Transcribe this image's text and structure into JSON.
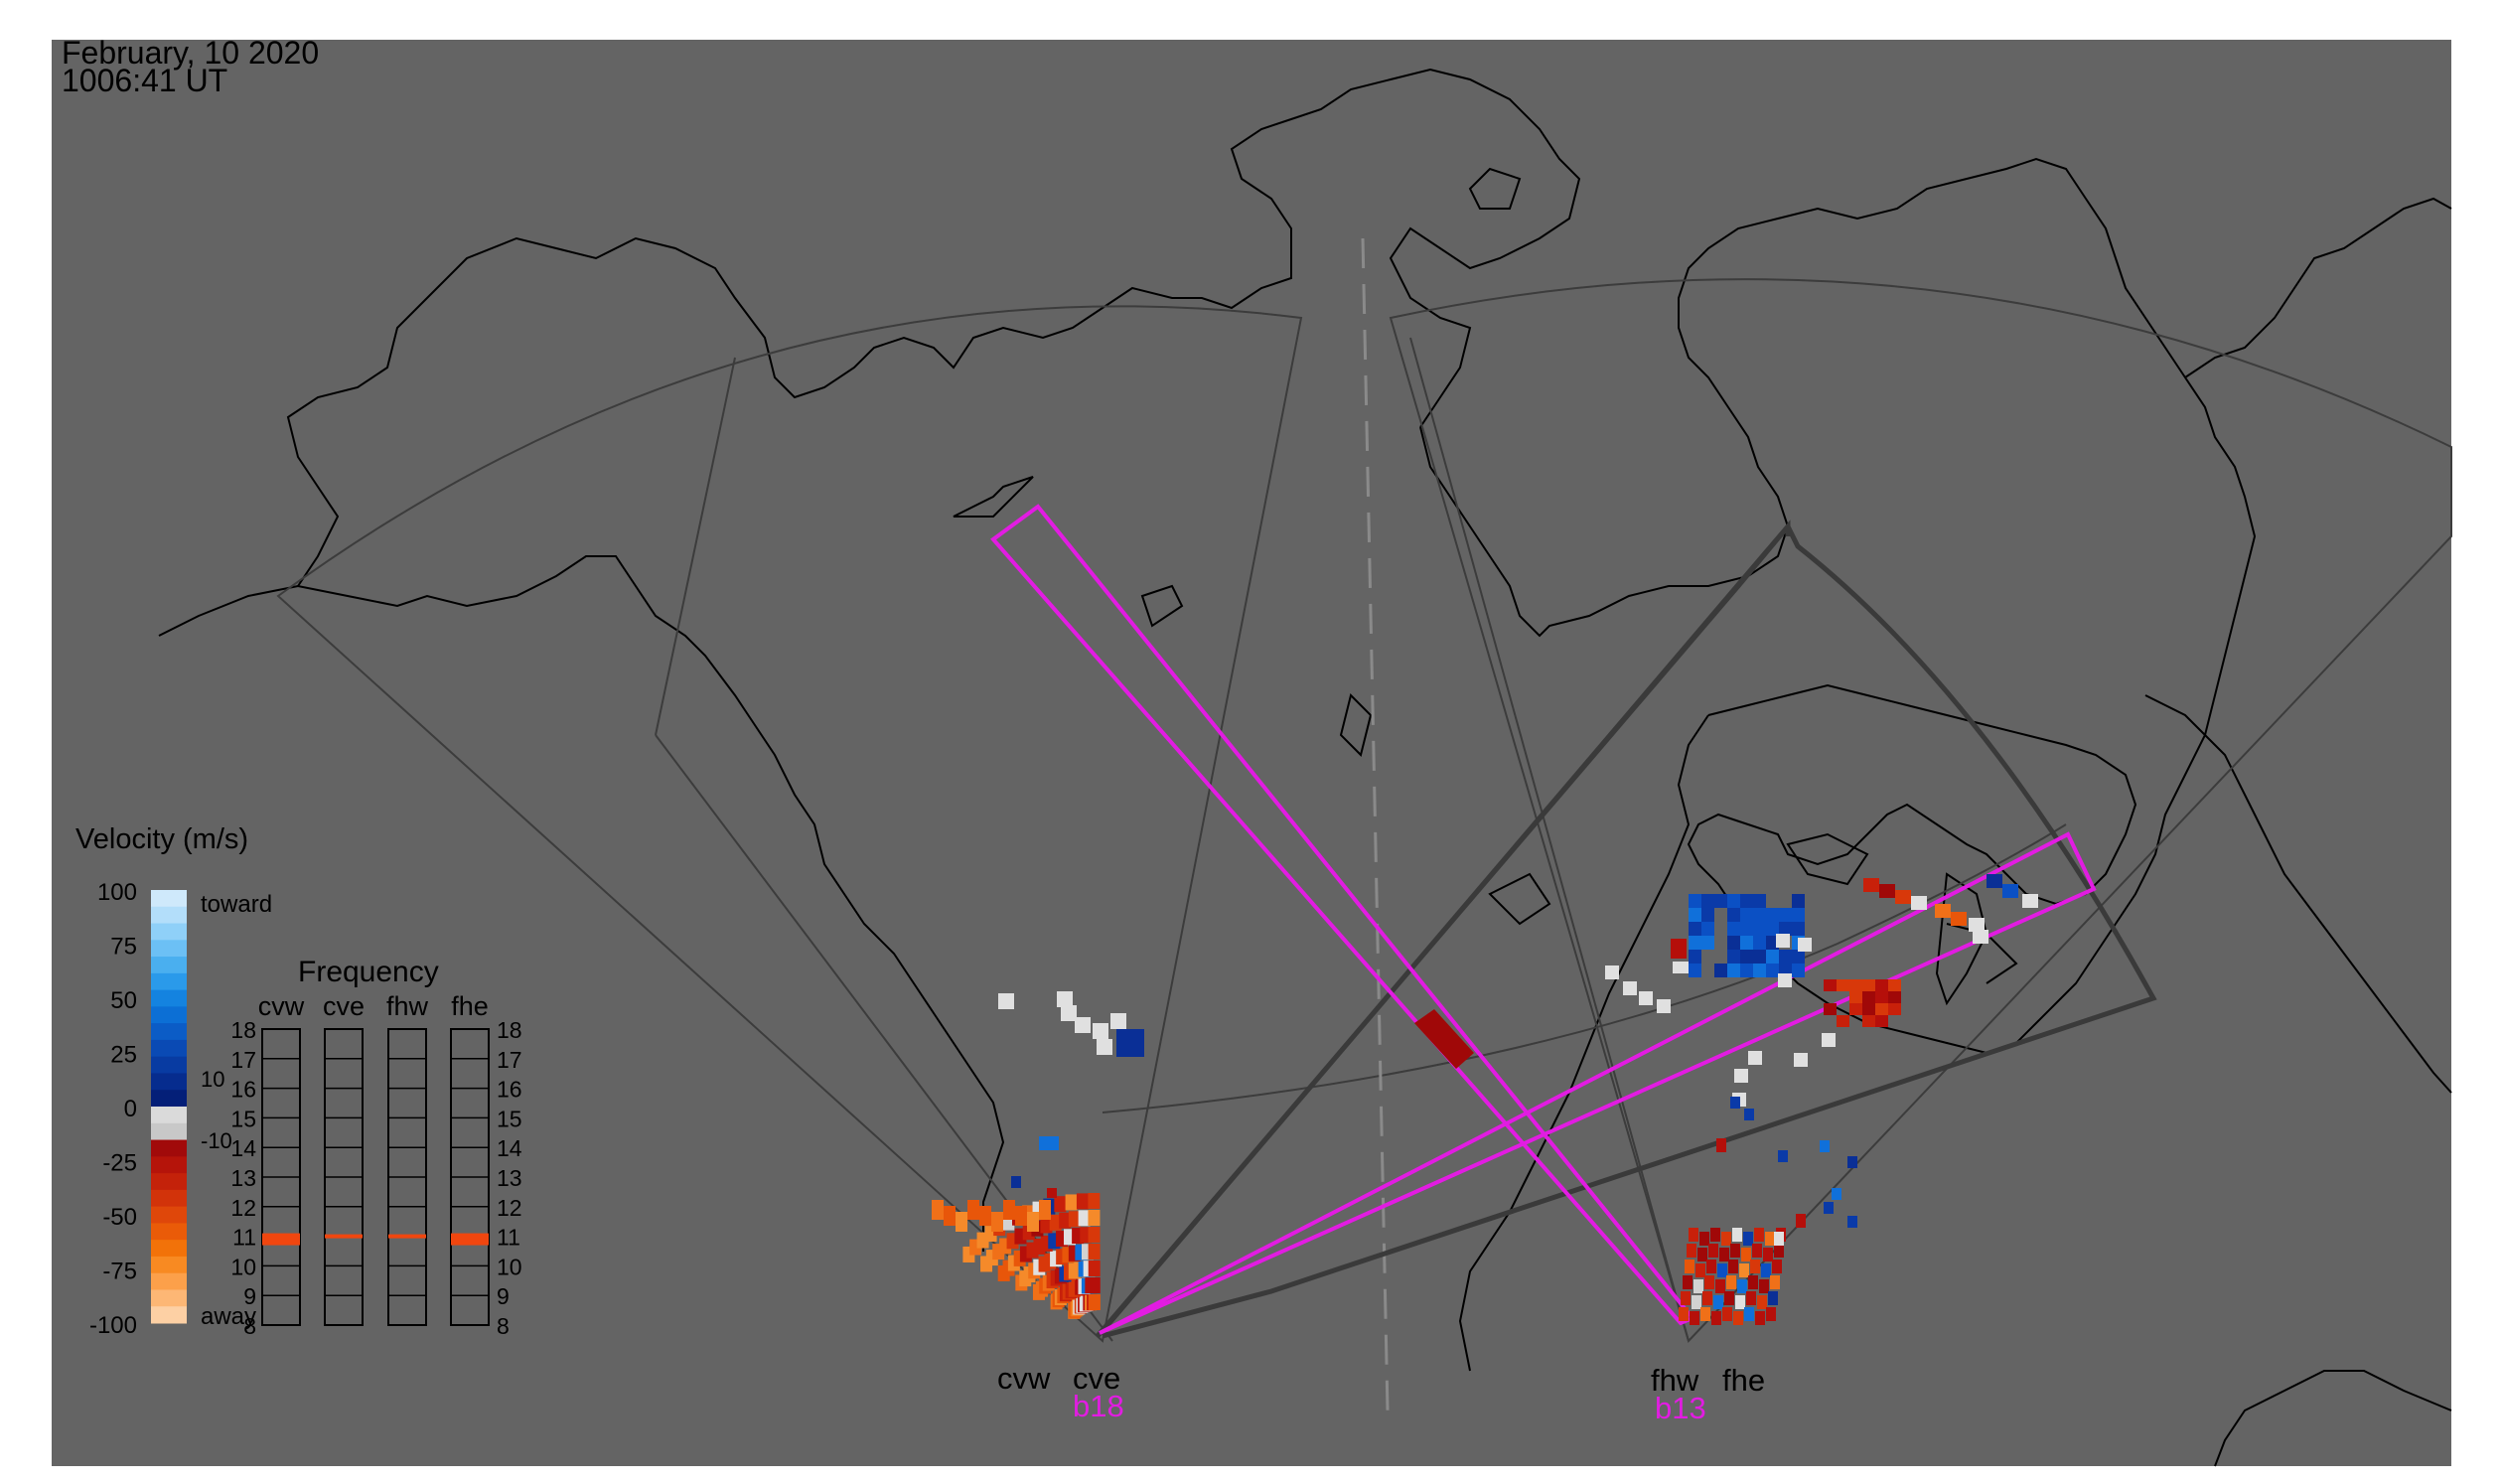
{
  "header": {
    "date": "February, 10 2020",
    "time": "1006:41 UT"
  },
  "radars": {
    "west": {
      "names": [
        "cvw",
        "cve"
      ],
      "beam": "b18"
    },
    "east": {
      "names": [
        "fhw",
        "fhe"
      ],
      "beam": "b13"
    }
  },
  "velocity_legend": {
    "title": "Velocity (m/s)",
    "ticks": [
      "100",
      "75",
      "50",
      "25",
      "0",
      "-25",
      "-50",
      "-75",
      "-100"
    ],
    "toward_label": "toward",
    "away_label": "away",
    "inner_ticks": [
      "10",
      "-10"
    ]
  },
  "frequency_panel": {
    "title": "Frequency",
    "columns": [
      "cvw",
      "cve",
      "fhw",
      "fhe"
    ],
    "ticks": [
      "18",
      "17",
      "16",
      "15",
      "14",
      "13",
      "12",
      "11",
      "10",
      "9",
      "8"
    ],
    "values_mhz": [
      10.9,
      11.0,
      11.0,
      10.9
    ]
  },
  "colors": {
    "background": "#646464",
    "beam": "#e21ce2",
    "coast": "#000000",
    "fov": "#3c3c3c"
  }
}
